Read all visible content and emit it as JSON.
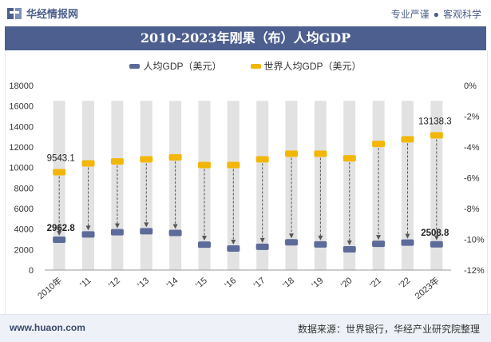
{
  "header": {
    "brand": "华经情报网",
    "tagline_left": "专业严谨",
    "tagline_right": "客观科学"
  },
  "footer": {
    "website": "www.huaon.com",
    "source": "数据来源：世界银行，华经产业研究院整理"
  },
  "colors": {
    "title_bar": "#4d5f8f",
    "series_congo": "#5d6b9a",
    "series_world": "#f2b705",
    "band": "#e2e2e2"
  },
  "chart_data": {
    "type": "bar",
    "title": "2010-2023年刚果（布）人均GDP",
    "categories": [
      "2010年",
      "'11",
      "'12",
      "'13",
      "'14",
      "'15",
      "'16",
      "'17",
      "'18",
      "'19",
      "'20",
      "'21",
      "'22",
      "2023年"
    ],
    "series": [
      {
        "name": "人均GDP（美元）",
        "values": [
          2962.8,
          3480,
          3690,
          3790,
          3620,
          2480,
          2100,
          2270,
          2710,
          2500,
          2030,
          2560,
          2680,
          2508.8
        ],
        "marker": "rounded-rect"
      },
      {
        "name": "世界人均GDP（美元）",
        "values": [
          9543.1,
          10400,
          10600,
          10800,
          11000,
          10250,
          10250,
          10800,
          11350,
          11350,
          10900,
          12300,
          12750,
          13138.3
        ],
        "marker": "rounded-rect"
      }
    ],
    "data_labels": [
      {
        "series": 0,
        "index": 0,
        "text": "2962.8"
      },
      {
        "series": 0,
        "index": 13,
        "text": "2508.8"
      },
      {
        "series": 1,
        "index": 0,
        "text": "9543.1"
      },
      {
        "series": 1,
        "index": 13,
        "text": "13138.3"
      }
    ],
    "y_left": {
      "min": 0,
      "max": 18000,
      "step": 2000,
      "ticks": [
        "0",
        "2000",
        "4000",
        "6000",
        "8000",
        "10000",
        "12000",
        "14000",
        "16000",
        "18000"
      ]
    },
    "y_right": {
      "min": -12,
      "max": 0,
      "step": 2,
      "ticks": [
        "-12%",
        "-10%",
        "-8%",
        "-6%",
        "-4%",
        "-2%",
        "0%"
      ]
    },
    "legend_position": "top-center",
    "band_top_value": 16500,
    "grid": false
  }
}
